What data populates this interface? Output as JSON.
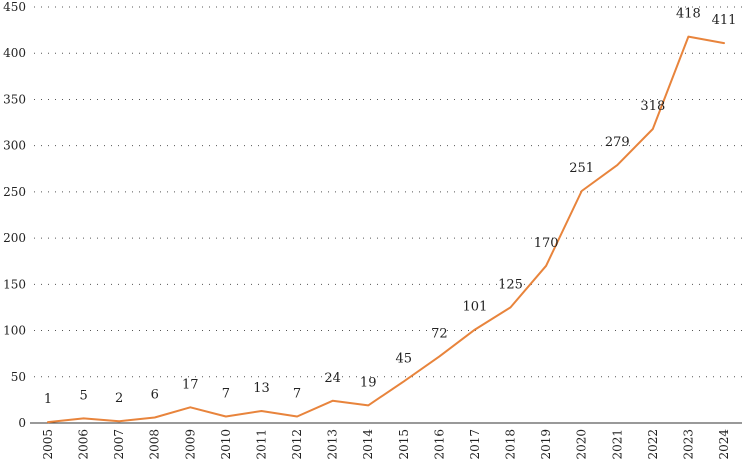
{
  "chart_data": {
    "type": "line",
    "title": "",
    "xlabel": "",
    "ylabel": "",
    "categories": [
      "2005",
      "2006",
      "2007",
      "2008",
      "2009",
      "2010",
      "2011",
      "2012",
      "2013",
      "2014",
      "2015",
      "2016",
      "2017",
      "2018",
      "2019",
      "2020",
      "2021",
      "2022",
      "2023",
      "2024"
    ],
    "series": [
      {
        "values": [
          1,
          5,
          2,
          6,
          17,
          7,
          13,
          7,
          24,
          19,
          45,
          72,
          101,
          125,
          170,
          251,
          279,
          318,
          418,
          411
        ]
      }
    ],
    "data_labels": [
      "1",
      "5",
      "2",
      "6",
      "17",
      "7",
      "13",
      "7",
      "24",
      "19",
      "45",
      "72",
      "101",
      "125",
      "170",
      "251",
      "279",
      "318",
      "418",
      "411"
    ],
    "ylim": [
      0,
      450
    ],
    "y_ticks": [
      "0",
      "50",
      "100",
      "150",
      "200",
      "250",
      "300",
      "350",
      "400",
      "450"
    ],
    "grid": "horizontal dotted",
    "legend": "none",
    "line_color": "#e8843c"
  }
}
